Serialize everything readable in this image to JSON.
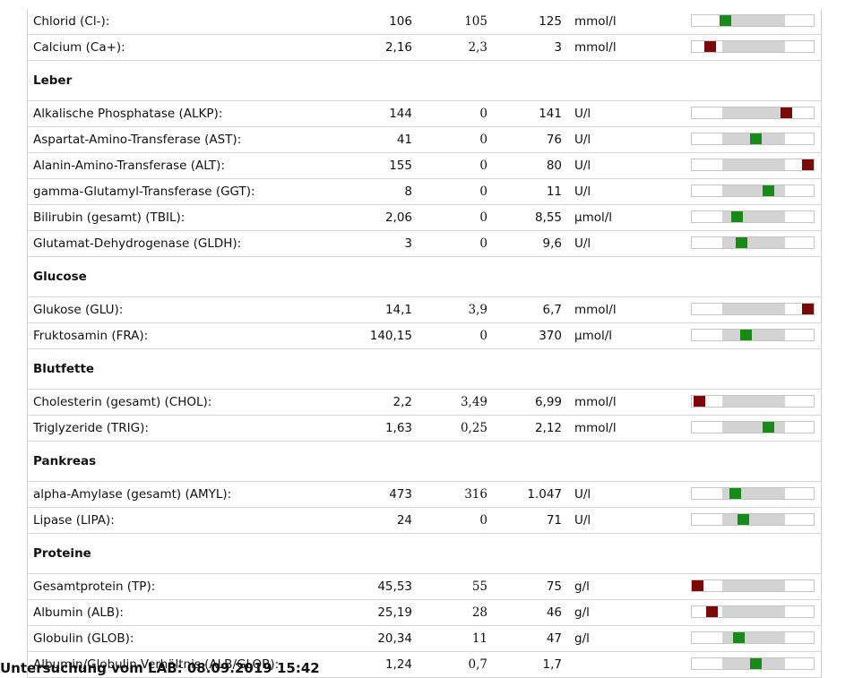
{
  "colors": {
    "normal": "#178a17",
    "abnormal": "#7a0a0a",
    "range": "#d3d3d3"
  },
  "rows": [
    {
      "type": "test",
      "name": "Chlorid (Cl-):",
      "value": "106",
      "min": "105",
      "max": "125",
      "unit": "mmol/l",
      "status": "normal",
      "level": 0.05
    },
    {
      "type": "test",
      "name": "Calcium (Ca+):",
      "value": "2,16",
      "min": "2,3",
      "max": "3",
      "unit": "mmol/l",
      "status": "abnormal",
      "level": -0.2
    },
    {
      "type": "section",
      "title": "Leber"
    },
    {
      "type": "test",
      "name": "Alkalische Phosphatase (ALKP):",
      "value": "144",
      "min": "0",
      "max": "141",
      "unit": "U/l",
      "status": "abnormal",
      "level": 1.02
    },
    {
      "type": "test",
      "name": "Aspartat-Amino-Transferase (AST):",
      "value": "41",
      "min": "0",
      "max": "76",
      "unit": "U/l",
      "status": "normal",
      "level": 0.54
    },
    {
      "type": "test",
      "name": "Alanin-Amino-Transferase (ALT):",
      "value": "155",
      "min": "0",
      "max": "80",
      "unit": "U/l",
      "status": "abnormal",
      "level": 1.94
    },
    {
      "type": "test",
      "name": "gamma-Glutamyl-Transferase (GGT):",
      "value": "8",
      "min": "0",
      "max": "11",
      "unit": "U/l",
      "status": "normal",
      "level": 0.73
    },
    {
      "type": "test",
      "name": "Bilirubin (gesamt) (TBIL):",
      "value": "2,06",
      "min": "0",
      "max": "8,55",
      "unit": "µmol/l",
      "status": "normal",
      "level": 0.24
    },
    {
      "type": "test",
      "name": "Glutamat-Dehydrogenase (GLDH):",
      "value": "3",
      "min": "0",
      "max": "9,6",
      "unit": "U/l",
      "status": "normal",
      "level": 0.31
    },
    {
      "type": "section",
      "title": "Glucose"
    },
    {
      "type": "test",
      "name": "Glukose (GLU):",
      "value": "14,1",
      "min": "3,9",
      "max": "6,7",
      "unit": "mmol/l",
      "status": "abnormal",
      "level": 3.64
    },
    {
      "type": "test",
      "name": "Fruktosamin (FRA):",
      "value": "140,15",
      "min": "0",
      "max": "370",
      "unit": "µmol/l",
      "status": "normal",
      "level": 0.38
    },
    {
      "type": "section",
      "title": "Blutfette"
    },
    {
      "type": "test",
      "name": "Cholesterin (gesamt) (CHOL):",
      "value": "2,2",
      "min": "3,49",
      "max": "6,99",
      "unit": "mmol/l",
      "status": "abnormal",
      "level": -0.37
    },
    {
      "type": "test",
      "name": "Triglyzeride (TRIG):",
      "value": "1,63",
      "min": "0,25",
      "max": "2,12",
      "unit": "mmol/l",
      "status": "normal",
      "level": 0.74
    },
    {
      "type": "section",
      "title": "Pankreas"
    },
    {
      "type": "test",
      "name": "alpha-Amylase (gesamt) (AMYL):",
      "value": "473",
      "min": "316",
      "max": "1.047",
      "unit": "U/l",
      "status": "normal",
      "level": 0.21
    },
    {
      "type": "test",
      "name": "Lipase (LIPA):",
      "value": "24",
      "min": "0",
      "max": "71",
      "unit": "U/l",
      "status": "normal",
      "level": 0.34
    },
    {
      "type": "section",
      "title": "Proteine"
    },
    {
      "type": "test",
      "name": "Gesamtprotein (TP):",
      "value": "45,53",
      "min": "55",
      "max": "75",
      "unit": "g/l",
      "status": "abnormal",
      "level": -0.47
    },
    {
      "type": "test",
      "name": "Albumin (ALB):",
      "value": "25,19",
      "min": "28",
      "max": "46",
      "unit": "g/l",
      "status": "abnormal",
      "level": -0.16
    },
    {
      "type": "test",
      "name": "Globulin (GLOB):",
      "value": "20,34",
      "min": "11",
      "max": "47",
      "unit": "g/l",
      "status": "normal",
      "level": 0.26
    },
    {
      "type": "test",
      "name": "Albumin/Globulin-Verhältnis (ALB/GLOB):",
      "value": "1,24",
      "min": "0,7",
      "max": "1,7",
      "unit": "",
      "status": "normal",
      "level": 0.54
    }
  ],
  "footer": {
    "text": "Untersuchung vom LAB: 08.09.2019 15:42"
  }
}
